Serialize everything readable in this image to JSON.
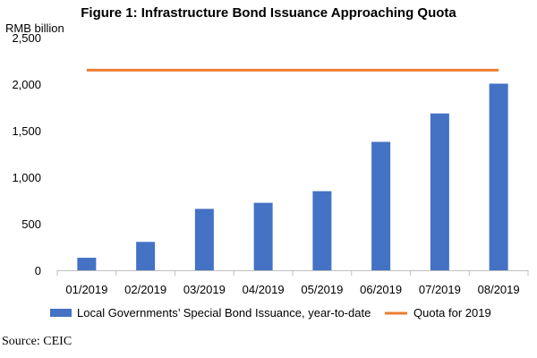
{
  "chart_data": {
    "type": "bar",
    "title": "Figure 1: Infrastructure Bond Issuance Approaching Quota",
    "ylabel": "RMB billion",
    "xlabel": "",
    "categories": [
      "01/2019",
      "02/2019",
      "03/2019",
      "04/2019",
      "05/2019",
      "06/2019",
      "07/2019",
      "08/2019"
    ],
    "series": [
      {
        "name": "Local Governments’ Special Bond Issuance, year-to-date",
        "type": "bar",
        "color": "#4472C4",
        "values": [
          135,
          305,
          660,
          725,
          850,
          1380,
          1685,
          2005
        ]
      },
      {
        "name": "Quota for 2019",
        "type": "line",
        "color": "#ED7D31",
        "value": 2150
      }
    ],
    "ylim": [
      0,
      2500
    ],
    "yticks": [
      0,
      500,
      1000,
      1500,
      2000,
      2500
    ],
    "ytick_labels": [
      "0",
      "500",
      "1,000",
      "1,500",
      "2,000",
      "2,500"
    ],
    "grid": false,
    "legend_position": "bottom"
  },
  "source": "Source: CEIC"
}
